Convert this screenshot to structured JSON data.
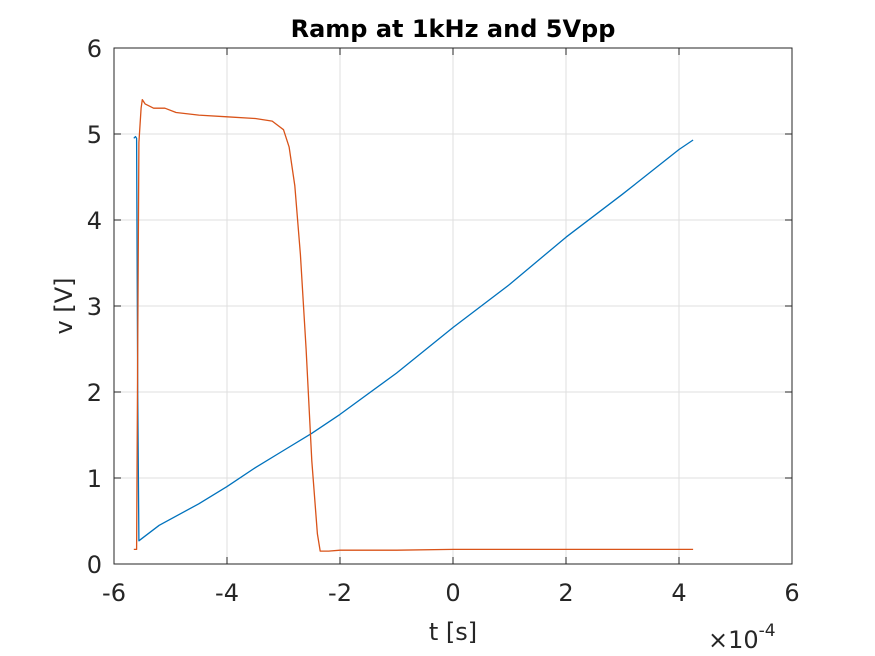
{
  "chart_data": {
    "type": "line",
    "title": "Ramp at 1kHz and 5Vpp",
    "xlabel": "t [s]",
    "ylabel": "v [V]",
    "x_multiplier_label": "×10",
    "x_multiplier_exp": "-4",
    "xlim": [
      -6,
      6
    ],
    "ylim": [
      0,
      6
    ],
    "x_unit_scale": "1e-4",
    "xticks": [
      -6,
      -4,
      -2,
      0,
      2,
      4,
      6
    ],
    "xtick_labels": [
      "-6",
      "-4",
      "-2",
      "0",
      "2",
      "4",
      "6"
    ],
    "yticks": [
      0,
      1,
      2,
      3,
      4,
      5,
      6
    ],
    "ytick_labels": [
      "0",
      "1",
      "2",
      "3",
      "4",
      "5",
      "6"
    ],
    "grid": true,
    "series": [
      {
        "color": "#0072BD",
        "x": [
          -5.65,
          -5.62,
          -5.6,
          -5.58,
          -5.56,
          -5.5,
          -5.2,
          -4.5,
          -4.0,
          -3.5,
          -3.0,
          -2.5,
          -2.0,
          -1.0,
          0.0,
          1.0,
          2.0,
          3.0,
          4.0,
          4.25
        ],
        "y": [
          4.95,
          4.97,
          4.95,
          2.0,
          0.27,
          0.3,
          0.45,
          0.7,
          0.9,
          1.12,
          1.32,
          1.52,
          1.74,
          2.22,
          2.75,
          3.25,
          3.8,
          4.3,
          4.82,
          4.93
        ]
      },
      {
        "color": "#D95319",
        "x": [
          -5.65,
          -5.6,
          -5.58,
          -5.56,
          -5.52,
          -5.5,
          -5.45,
          -5.3,
          -5.1,
          -4.9,
          -4.5,
          -4.0,
          -3.5,
          -3.2,
          -3.0,
          -2.9,
          -2.8,
          -2.7,
          -2.6,
          -2.5,
          -2.4,
          -2.35,
          -2.2,
          -2.0,
          -1.0,
          0.0,
          1.0,
          2.0,
          3.0,
          4.0,
          4.25
        ],
        "y": [
          0.17,
          0.17,
          2.5,
          4.9,
          5.3,
          5.4,
          5.35,
          5.3,
          5.3,
          5.25,
          5.22,
          5.2,
          5.18,
          5.15,
          5.05,
          4.85,
          4.4,
          3.6,
          2.5,
          1.2,
          0.35,
          0.15,
          0.15,
          0.16,
          0.16,
          0.17,
          0.17,
          0.17,
          0.17,
          0.17,
          0.17
        ]
      }
    ]
  }
}
